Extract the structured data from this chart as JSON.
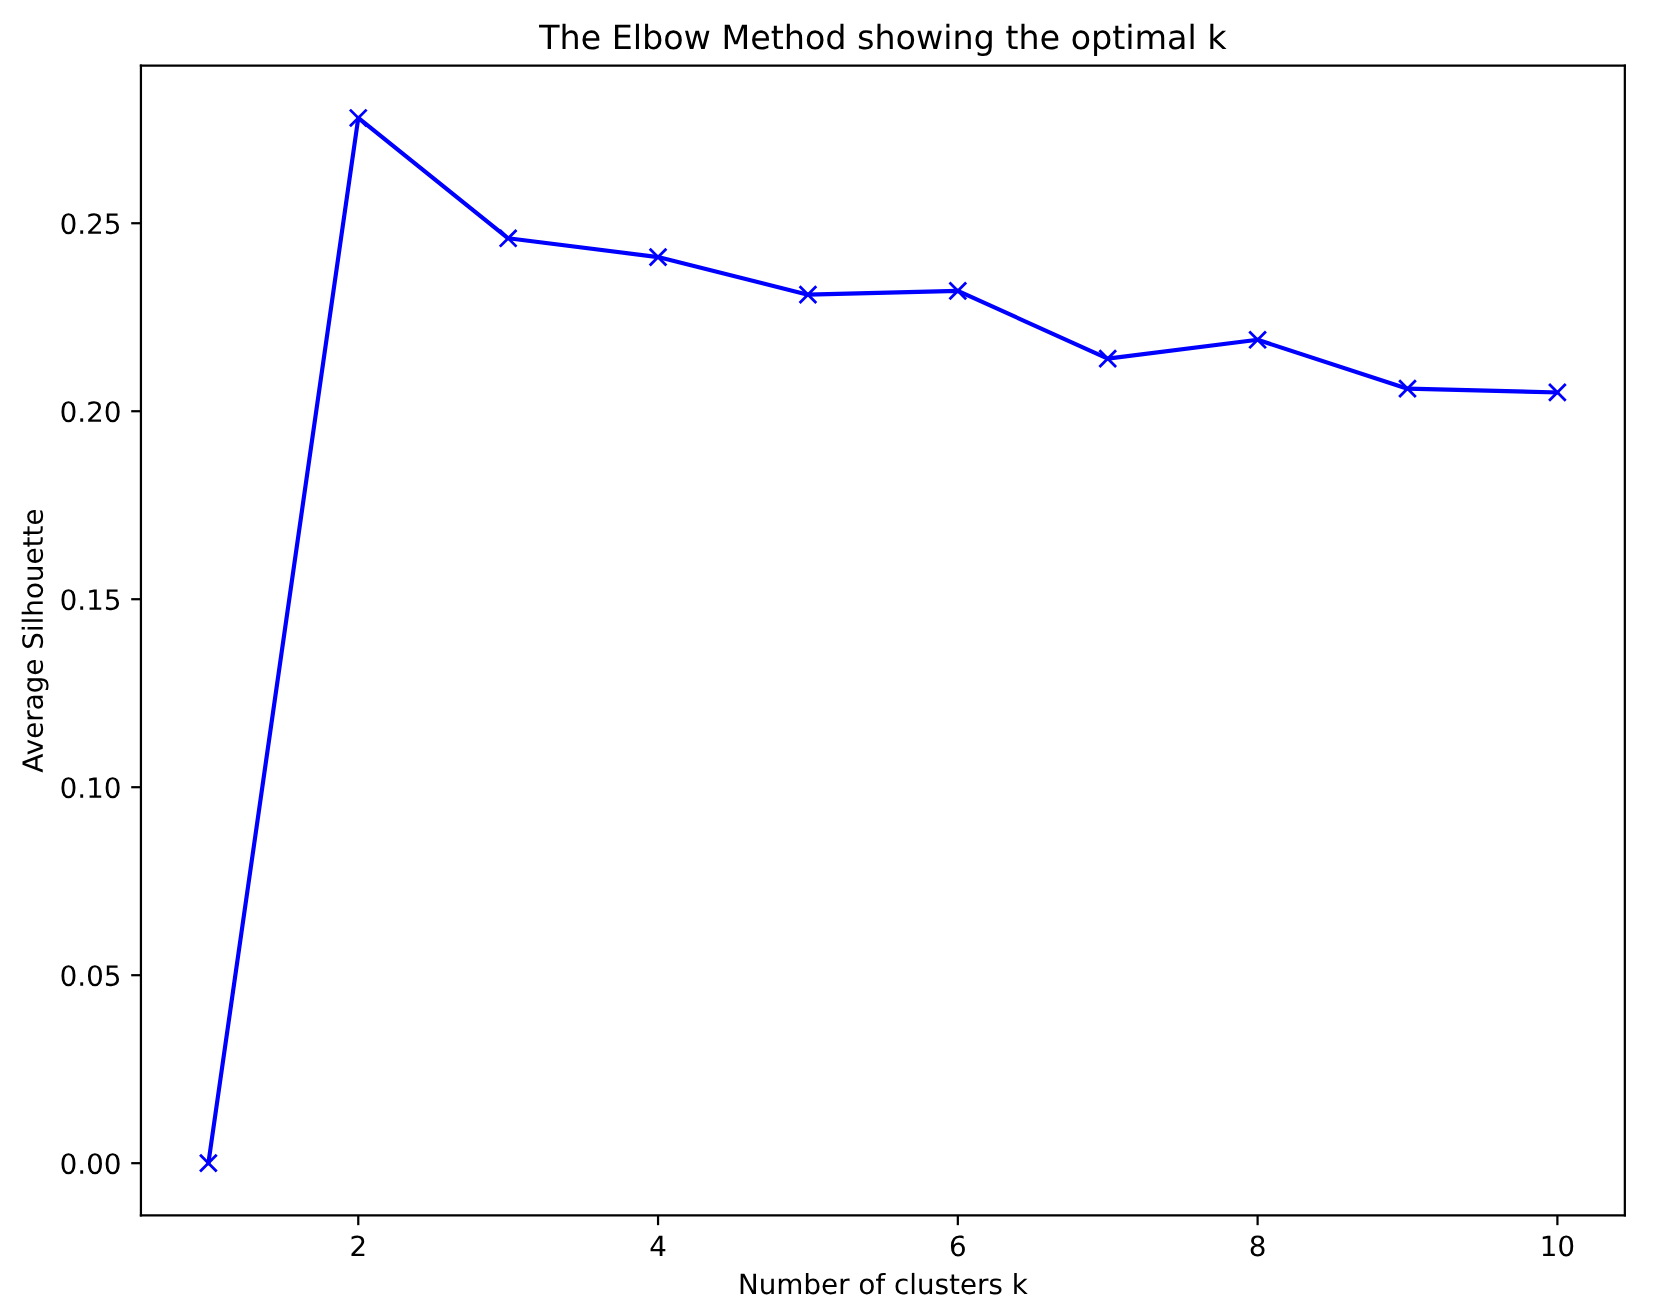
{
  "chart_data": {
    "type": "line",
    "title": "The Elbow Method showing the optimal k",
    "xlabel": "Number of clusters k",
    "ylabel": "Average Silhouette",
    "x": [
      1,
      2,
      3,
      4,
      5,
      6,
      7,
      8,
      9,
      10
    ],
    "series": [
      {
        "color": "#0000ff",
        "values": [
          0.0,
          0.278,
          0.246,
          0.241,
          0.231,
          0.232,
          0.214,
          0.219,
          0.206,
          0.205
        ]
      }
    ],
    "marker": "cross",
    "line_style": "solid",
    "xlim": [
      0.55,
      10.45
    ],
    "xticks": [
      2,
      4,
      6,
      8,
      10
    ],
    "ylim": [
      -0.0139,
      0.2919
    ],
    "yticks": [
      {
        "value": 0,
        "label": "0.00"
      },
      {
        "value": 0.05,
        "label": "0.05"
      },
      {
        "value": 0.1,
        "label": "0.10"
      },
      {
        "value": 0.15,
        "label": "0.15"
      },
      {
        "value": 0.2,
        "label": "0.20"
      },
      {
        "value": 0.25,
        "label": "0.25"
      }
    ],
    "grid": false,
    "legend": false
  }
}
